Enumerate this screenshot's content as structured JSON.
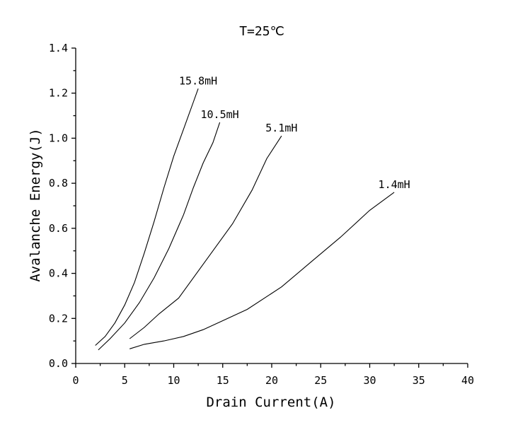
{
  "chart_data": {
    "type": "line",
    "title": "T=25℃",
    "xlabel": "Drain Current(A)",
    "ylabel": "Avalanche Energy(J)",
    "xlim": [
      0,
      40
    ],
    "ylim": [
      0,
      1.4
    ],
    "x_ticks": [
      "0",
      "5",
      "10",
      "15",
      "20",
      "25",
      "30",
      "35",
      "40"
    ],
    "y_ticks": [
      "0.0",
      "0.2",
      "0.4",
      "0.6",
      "0.8",
      "1.0",
      "1.2",
      "1.4"
    ],
    "grid": false,
    "legend": "none",
    "series": [
      {
        "name": "15.8mH",
        "points": [
          [
            2.0,
            0.08
          ],
          [
            3.0,
            0.12
          ],
          [
            4.0,
            0.18
          ],
          [
            5.0,
            0.26
          ],
          [
            6.0,
            0.36
          ],
          [
            7.0,
            0.49
          ],
          [
            8.0,
            0.63
          ],
          [
            9.0,
            0.78
          ],
          [
            10.0,
            0.92
          ],
          [
            11.0,
            1.04
          ],
          [
            11.5,
            1.1
          ],
          [
            12.0,
            1.16
          ],
          [
            12.5,
            1.22
          ]
        ]
      },
      {
        "name": "10.5mH",
        "points": [
          [
            2.3,
            0.06
          ],
          [
            3.5,
            0.11
          ],
          [
            5.0,
            0.18
          ],
          [
            6.5,
            0.27
          ],
          [
            8.0,
            0.38
          ],
          [
            9.5,
            0.51
          ],
          [
            11.0,
            0.66
          ],
          [
            12.0,
            0.78
          ],
          [
            13.0,
            0.89
          ],
          [
            14.0,
            0.98
          ],
          [
            14.7,
            1.07
          ]
        ]
      },
      {
        "name": "5.1mH",
        "points": [
          [
            5.5,
            0.11
          ],
          [
            7.0,
            0.16
          ],
          [
            8.5,
            0.22
          ],
          [
            10.5,
            0.29
          ],
          [
            12.0,
            0.38
          ],
          [
            14.0,
            0.5
          ],
          [
            16.0,
            0.62
          ],
          [
            18.0,
            0.77
          ],
          [
            19.5,
            0.91
          ],
          [
            21.0,
            1.01
          ]
        ]
      },
      {
        "name": "1.4mH",
        "points": [
          [
            5.5,
            0.065
          ],
          [
            7.0,
            0.085
          ],
          [
            9.0,
            0.1
          ],
          [
            11.0,
            0.12
          ],
          [
            13.0,
            0.15
          ],
          [
            15.0,
            0.19
          ],
          [
            17.5,
            0.24
          ],
          [
            21.0,
            0.34
          ],
          [
            24.0,
            0.45
          ],
          [
            27.0,
            0.56
          ],
          [
            30.0,
            0.68
          ],
          [
            32.5,
            0.76
          ]
        ]
      }
    ]
  }
}
